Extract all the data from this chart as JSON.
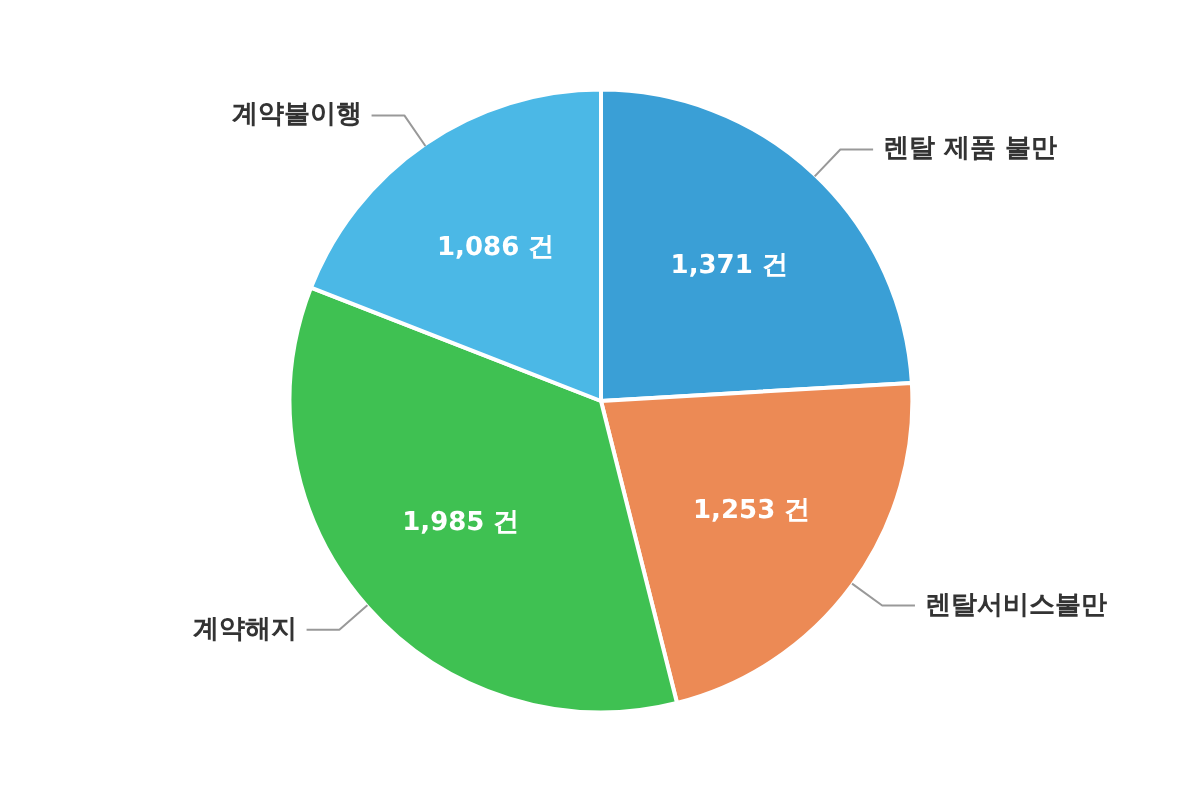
{
  "chart_data": {
    "type": "pie",
    "categories": [
      "렌탈 제품 불만",
      "렌탈서비스불만",
      "계약해지",
      "계약불이행"
    ],
    "values": [
      1371,
      1253,
      1985,
      1086
    ],
    "colors": [
      "#3a9fd6",
      "#ec8a55",
      "#3fc152",
      "#4bb8e6"
    ],
    "value_labels": [
      "1,371 건",
      "1,253 건",
      "1,985 건",
      "1,086 건"
    ]
  }
}
